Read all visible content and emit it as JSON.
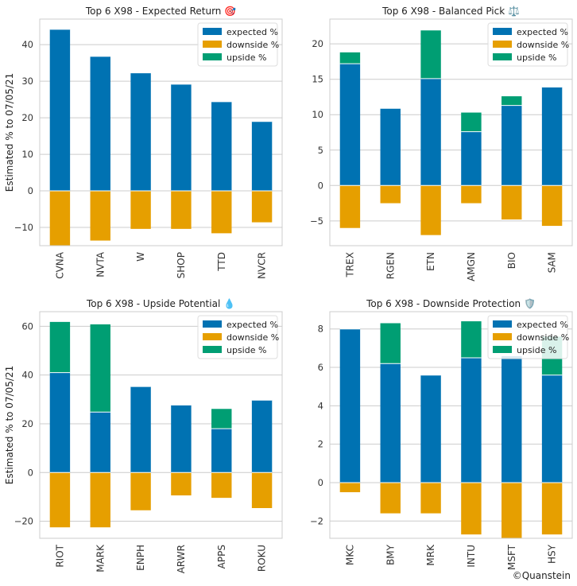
{
  "figure": {
    "credit": "©Quanstein"
  },
  "series_names": [
    "expected %",
    "downside %",
    "upside %"
  ],
  "colors": {
    "expected": "#0072b2",
    "downside": "#e69f00",
    "upside": "#009e73",
    "grid": "#cccccc",
    "frame": "#cccccc"
  },
  "chart_data": [
    {
      "type": "bar",
      "stacked": true,
      "title": "Top 6 X98 - Expected Return 🎯",
      "ylabel": "Estimated % to 07/05/21",
      "xlabel": "",
      "categories": [
        "CVNA",
        "NVTA",
        "W",
        "SHOP",
        "TTD",
        "NVCR"
      ],
      "ylim": [
        -15,
        47
      ],
      "yticks": [
        -10,
        0,
        10,
        20,
        30,
        40
      ],
      "legend": "top-right",
      "grid": true,
      "series": [
        {
          "name": "expected %",
          "values": [
            44.2,
            36.8,
            32.3,
            29.2,
            24.4,
            19.0
          ]
        },
        {
          "name": "downside %",
          "values": [
            -15.0,
            -13.6,
            -10.4,
            -10.4,
            -11.6,
            -8.6
          ]
        },
        {
          "name": "upside %",
          "values": [
            0,
            0,
            0,
            0,
            0,
            0
          ]
        }
      ]
    },
    {
      "type": "bar",
      "stacked": true,
      "title": "Top 6 X98 - Balanced Pick ⚖️",
      "ylabel": "",
      "xlabel": "",
      "categories": [
        "TREX",
        "RGEN",
        "ETN",
        "AMGN",
        "BIO",
        "SAM"
      ],
      "ylim": [
        -8.5,
        23.5
      ],
      "yticks": [
        -5,
        0,
        5,
        10,
        15,
        20
      ],
      "legend": "top-right",
      "grid": true,
      "series": [
        {
          "name": "expected %",
          "values": [
            17.2,
            10.9,
            15.1,
            7.6,
            11.3,
            13.9
          ]
        },
        {
          "name": "downside %",
          "values": [
            -6.0,
            -2.5,
            -7.0,
            -2.5,
            -4.8,
            -5.7
          ]
        },
        {
          "name": "upside %",
          "values": [
            1.6,
            0,
            6.8,
            2.7,
            1.3,
            0
          ]
        }
      ]
    },
    {
      "type": "bar",
      "stacked": true,
      "title": "Top 6 X98 - Upside Potential 💧",
      "ylabel": "Estimated % to 07/05/21",
      "xlabel": "",
      "categories": [
        "RIOT",
        "MARK",
        "ENPH",
        "ARWR",
        "APPS",
        "ROKU"
      ],
      "ylim": [
        -27,
        66
      ],
      "yticks": [
        -20,
        0,
        20,
        40,
        60
      ],
      "legend": "top-right",
      "grid": true,
      "series": [
        {
          "name": "expected %",
          "values": [
            41.0,
            24.8,
            35.3,
            27.7,
            18.0,
            29.7
          ]
        },
        {
          "name": "downside %",
          "values": [
            -22.5,
            -22.5,
            -15.5,
            -9.4,
            -10.4,
            -14.6
          ]
        },
        {
          "name": "upside %",
          "values": [
            20.8,
            36.0,
            0,
            0,
            8.1,
            0
          ]
        }
      ]
    },
    {
      "type": "bar",
      "stacked": true,
      "title": "Top 6 X98 - Downside Protection 🛡️",
      "ylabel": "",
      "xlabel": "",
      "categories": [
        "MKC",
        "BMY",
        "MRK",
        "INTU",
        "MSFT",
        "HSY"
      ],
      "ylim": [
        -2.9,
        8.9
      ],
      "yticks": [
        -2,
        0,
        2,
        4,
        6,
        8
      ],
      "legend": "top-right",
      "grid": true,
      "series": [
        {
          "name": "expected %",
          "values": [
            8.0,
            6.2,
            5.6,
            6.5,
            6.6,
            5.6
          ]
        },
        {
          "name": "downside %",
          "values": [
            -0.5,
            -1.6,
            -1.6,
            -2.7,
            -2.9,
            -2.7
          ]
        },
        {
          "name": "upside %",
          "values": [
            0,
            2.1,
            0,
            1.9,
            0,
            2.0
          ]
        }
      ]
    }
  ]
}
